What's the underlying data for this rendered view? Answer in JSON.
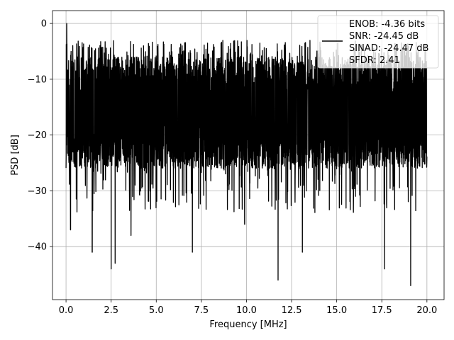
{
  "chart_data": {
    "type": "line",
    "title": "",
    "xlabel": "Frequency [MHz]",
    "ylabel": "PSD [dB]",
    "xlim": [
      -0.75,
      20.95
    ],
    "ylim": [
      -49.5,
      2.3
    ],
    "xticks": [
      0.0,
      2.5,
      5.0,
      7.5,
      10.0,
      12.5,
      15.0,
      17.5,
      20.0
    ],
    "xtick_labels": [
      "0.0",
      "2.5",
      "5.0",
      "7.5",
      "10.0",
      "12.5",
      "15.0",
      "17.5",
      "20.0"
    ],
    "yticks": [
      0,
      -10,
      -20,
      -30,
      -40
    ],
    "ytick_labels": [
      "0",
      "−10",
      "−20",
      "−30",
      "−40"
    ],
    "grid": true,
    "legend_position": "top-right",
    "series": [
      {
        "color": "#000000",
        "x_start": 0.0,
        "x_end": 20.0,
        "peak": {
          "x": 0.04,
          "y": 0.0
        },
        "typical_range": [
          -26,
          -6
        ],
        "notable_dips": [
          {
            "x": 0.25,
            "y": -37
          },
          {
            "x": 1.45,
            "y": -41
          },
          {
            "x": 2.5,
            "y": -44
          },
          {
            "x": 2.72,
            "y": -43
          },
          {
            "x": 3.6,
            "y": -38
          },
          {
            "x": 7.0,
            "y": -41
          },
          {
            "x": 9.9,
            "y": -36
          },
          {
            "x": 11.75,
            "y": -46
          },
          {
            "x": 13.1,
            "y": -41
          },
          {
            "x": 17.65,
            "y": -44
          },
          {
            "x": 19.1,
            "y": -47
          }
        ]
      }
    ],
    "legend": {
      "lines": [
        "ENOB: -4.36 bits",
        "SNR: -24.45 dB",
        "SINAD: -24.47 dB",
        "SFDR: 2.41"
      ]
    }
  }
}
